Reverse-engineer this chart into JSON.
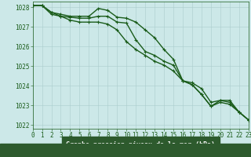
{
  "title": "Graphe pression niveau de la mer (hPa)",
  "background_color": "#cce8e8",
  "plot_bg_color": "#cce8e8",
  "bottom_bar_color": "#2d5a2d",
  "grid_color": "#aacccc",
  "line_color": "#1a5c1a",
  "xlim": [
    0,
    23
  ],
  "ylim": [
    1021.8,
    1028.3
  ],
  "yticks": [
    1022,
    1023,
    1024,
    1025,
    1026,
    1027,
    1028
  ],
  "xticks": [
    0,
    1,
    2,
    3,
    4,
    5,
    6,
    7,
    8,
    9,
    10,
    11,
    12,
    13,
    14,
    15,
    16,
    17,
    18,
    19,
    20,
    21,
    22,
    23
  ],
  "series": [
    {
      "x": [
        0,
        1,
        2,
        3,
        4,
        5,
        6,
        7,
        8,
        9,
        10,
        11,
        12,
        13,
        14,
        15,
        16,
        17,
        18,
        19,
        20,
        21,
        22,
        23
      ],
      "y": [
        1028.1,
        1028.1,
        1027.75,
        1027.65,
        1027.55,
        1027.55,
        1027.55,
        1027.95,
        1027.85,
        1027.5,
        1027.45,
        1027.25,
        1026.85,
        1026.45,
        1025.85,
        1025.35,
        1024.25,
        1024.15,
        1023.85,
        1023.15,
        1023.25,
        1023.25,
        1022.65,
        1022.25
      ]
    },
    {
      "x": [
        0,
        1,
        2,
        3,
        4,
        5,
        6,
        7,
        8,
        9,
        10,
        11,
        12,
        13,
        14,
        15,
        16,
        17,
        18,
        19,
        20,
        21,
        22,
        23
      ],
      "y": [
        1028.1,
        1028.1,
        1027.75,
        1027.55,
        1027.5,
        1027.45,
        1027.45,
        1027.55,
        1027.55,
        1027.25,
        1027.2,
        1026.35,
        1025.75,
        1025.55,
        1025.25,
        1025.05,
        1024.25,
        1024.05,
        1023.55,
        1022.95,
        1023.25,
        1023.15,
        1022.65,
        1022.25
      ]
    },
    {
      "x": [
        0,
        1,
        2,
        3,
        4,
        5,
        6,
        7,
        8,
        9,
        10,
        11,
        12,
        13,
        14,
        15,
        16,
        17,
        18,
        19,
        20,
        21,
        22,
        23
      ],
      "y": [
        1028.1,
        1028.1,
        1027.65,
        1027.55,
        1027.35,
        1027.25,
        1027.25,
        1027.25,
        1027.15,
        1026.85,
        1026.25,
        1025.85,
        1025.55,
        1025.25,
        1025.05,
        1024.75,
        1024.25,
        1024.05,
        1023.55,
        1022.95,
        1023.15,
        1023.05,
        1022.65,
        1022.25
      ]
    }
  ],
  "marker": "+",
  "markersize": 3.5,
  "linewidth": 1.0,
  "tick_fontsize": 5.5,
  "xlabel_fontsize": 6.0
}
